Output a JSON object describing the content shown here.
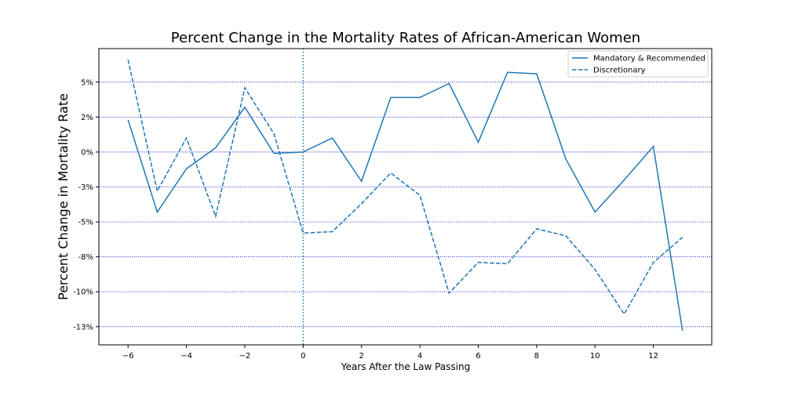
{
  "chart_data": {
    "type": "line",
    "title": "Percent Change in the Mortality Rates of African-American Women",
    "xlabel": "Years After the Law Passing",
    "ylabel": "Percent Change in Mortality Rate",
    "x": [
      -6,
      -5,
      -4,
      -3,
      -2,
      -1,
      0,
      1,
      2,
      3,
      4,
      5,
      6,
      7,
      8,
      9,
      10,
      11,
      12,
      13
    ],
    "series": [
      {
        "name": "Mandatory & Recommended",
        "style": "solid",
        "color": "#1f77b4",
        "values": [
          2.3,
          -4.3,
          -1.2,
          0.3,
          3.2,
          -0.1,
          0.0,
          1.0,
          -2.1,
          3.9,
          3.9,
          4.9,
          0.7,
          5.7,
          5.6,
          -0.5,
          -4.3,
          -2.0,
          0.4,
          -12.8
        ]
      },
      {
        "name": "Discretionary",
        "style": "dashed",
        "color": "#1f77b4",
        "values": [
          6.6,
          -2.8,
          1.0,
          -4.6,
          4.6,
          1.3,
          -5.8,
          -5.7,
          -3.7,
          -1.5,
          -3.1,
          -10.1,
          -7.9,
          -8.0,
          -5.5,
          -6.0,
          -8.4,
          -11.6,
          -7.9,
          -6.1
        ]
      }
    ],
    "xlim": [
      -7.0,
      14.0
    ],
    "ylim": [
      -13.8,
      7.4
    ],
    "xticks": [
      -6,
      -4,
      -2,
      0,
      2,
      4,
      6,
      8,
      10,
      12
    ],
    "xtick_labels": [
      "−6",
      "−4",
      "−2",
      "0",
      "2",
      "4",
      "6",
      "8",
      "10",
      "12"
    ],
    "yticks": [
      5,
      2.5,
      0,
      -2.5,
      -5,
      -7.5,
      -10,
      -12.5
    ],
    "ytick_labels": [
      "5%",
      "2%",
      "0%",
      "-3%",
      "-5%",
      "-8%",
      "-10%",
      "-13%"
    ],
    "grid": {
      "axis": "y",
      "color": "#0000cc",
      "style": "dotted"
    },
    "vline": {
      "x": 0,
      "color": "#1f77b4",
      "style": "dotted"
    },
    "legend": {
      "position": "top-right"
    }
  }
}
